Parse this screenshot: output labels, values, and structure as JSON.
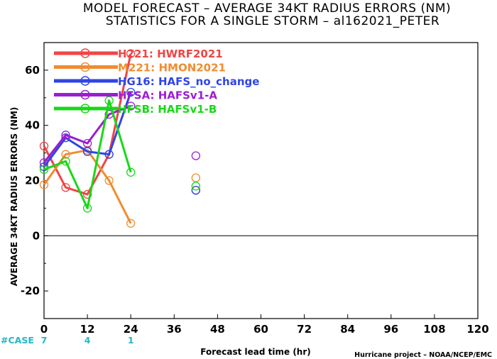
{
  "title_line1": "MODEL FORECAST – AVERAGE 34KT RADIUS ERRORS (NM)",
  "title_line2": "STATISTICS FOR A SINGLE STORM – al162021_PETER",
  "credit": "Hurricane project – NOAA/NCEP/EMC",
  "case_label": "#CASE",
  "cases": [
    {
      "x": 0,
      "n": "7"
    },
    {
      "x": 12,
      "n": "4"
    },
    {
      "x": 24,
      "n": "1"
    }
  ],
  "chart_data": {
    "type": "line",
    "title": "MODEL FORECAST – AVERAGE 34KT RADIUS ERRORS (NM)",
    "subtitle": "STATISTICS FOR A SINGLE STORM – al162021_PETER",
    "xlabel": "Forecast lead time (hr)",
    "ylabel": "AVERAGE 34KT RADIUS ERRORS (NM)",
    "xlim": [
      0,
      120
    ],
    "ylim": [
      -30,
      70
    ],
    "xticks": [
      0,
      12,
      24,
      36,
      48,
      60,
      72,
      84,
      96,
      108,
      120
    ],
    "yticks": [
      -20,
      0,
      20,
      40,
      60
    ],
    "grid": false,
    "legend_position": "top-left",
    "zero_line": true,
    "series": [
      {
        "name": "H221: HWRF2021",
        "color": "#f04545",
        "line": [
          [
            0,
            32.5
          ],
          [
            6,
            17.5
          ],
          [
            12,
            15
          ],
          [
            18,
            29.5
          ],
          [
            24,
            66
          ]
        ],
        "extra_points": [
          [
            42,
            16.5
          ]
        ]
      },
      {
        "name": "M221: HMON2021",
        "color": "#f08c30",
        "line": [
          [
            0,
            18.5
          ],
          [
            6,
            29.5
          ],
          [
            12,
            31
          ],
          [
            18,
            20
          ],
          [
            24,
            4.5
          ]
        ],
        "extra_points": [
          [
            42,
            21
          ]
        ]
      },
      {
        "name": "HG16: HAFS_no_change",
        "color": "#2f45e6",
        "line": [
          [
            0,
            25
          ],
          [
            6,
            35.5
          ],
          [
            12,
            30.5
          ],
          [
            18,
            29.5
          ],
          [
            24,
            52
          ]
        ],
        "extra_points": [
          [
            42,
            16.5
          ]
        ]
      },
      {
        "name": "HFSA: HAFSv1-A",
        "color": "#9b1ed0",
        "line": [
          [
            0,
            26.5
          ],
          [
            6,
            36.5
          ],
          [
            12,
            33.5
          ],
          [
            18,
            44
          ],
          [
            24,
            47
          ]
        ],
        "extra_points": [
          [
            42,
            29
          ]
        ]
      },
      {
        "name": "HFSB: HAFSv1-B",
        "color": "#18d818",
        "line": [
          [
            0,
            24
          ],
          [
            6,
            27
          ],
          [
            12,
            10
          ],
          [
            18,
            49
          ],
          [
            24,
            23
          ]
        ],
        "extra_points": [
          [
            42,
            18
          ]
        ]
      }
    ]
  }
}
